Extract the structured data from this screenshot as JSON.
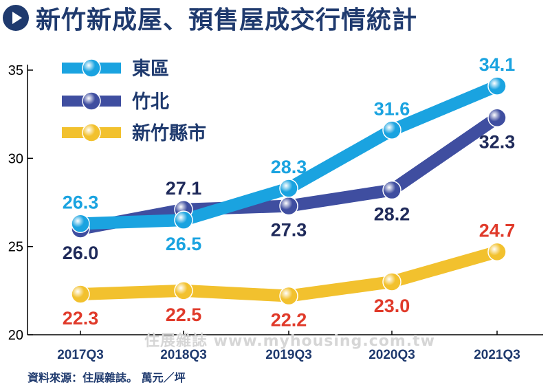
{
  "title": "新竹新成屋、預售屋成交行情統計",
  "source": "資料來源：住展雜誌。 萬元／坪",
  "watermark": "住展雜誌 www.myhousing.com.tw",
  "chart_data": {
    "type": "line",
    "categories": [
      "2017Q3",
      "2018Q3",
      "2019Q3",
      "2020Q3",
      "2021Q3"
    ],
    "yticks": [
      "20",
      "25",
      "30",
      "35"
    ],
    "ylim": [
      20,
      35
    ],
    "series": [
      {
        "name": "東區",
        "values": [
          26.3,
          26.5,
          28.3,
          31.6,
          34.1
        ],
        "labels": [
          "26.3",
          "26.5",
          "28.3",
          "31.6",
          "34.1"
        ],
        "color": "#1aa3e0",
        "label_color": "#1aa3e0"
      },
      {
        "name": "竹北",
        "values": [
          26.0,
          27.1,
          27.3,
          28.2,
          32.3
        ],
        "labels": [
          "26.0",
          "27.1",
          "27.3",
          "28.2",
          "32.3"
        ],
        "color": "#3f4ea0",
        "label_color": "#1f2a5a"
      },
      {
        "name": "新竹縣市",
        "values": [
          22.3,
          22.5,
          22.2,
          23.0,
          24.7
        ],
        "labels": [
          "22.3",
          "22.5",
          "22.2",
          "23.0",
          "24.7"
        ],
        "color": "#f2c12e",
        "label_color": "#e03a2a"
      }
    ]
  }
}
